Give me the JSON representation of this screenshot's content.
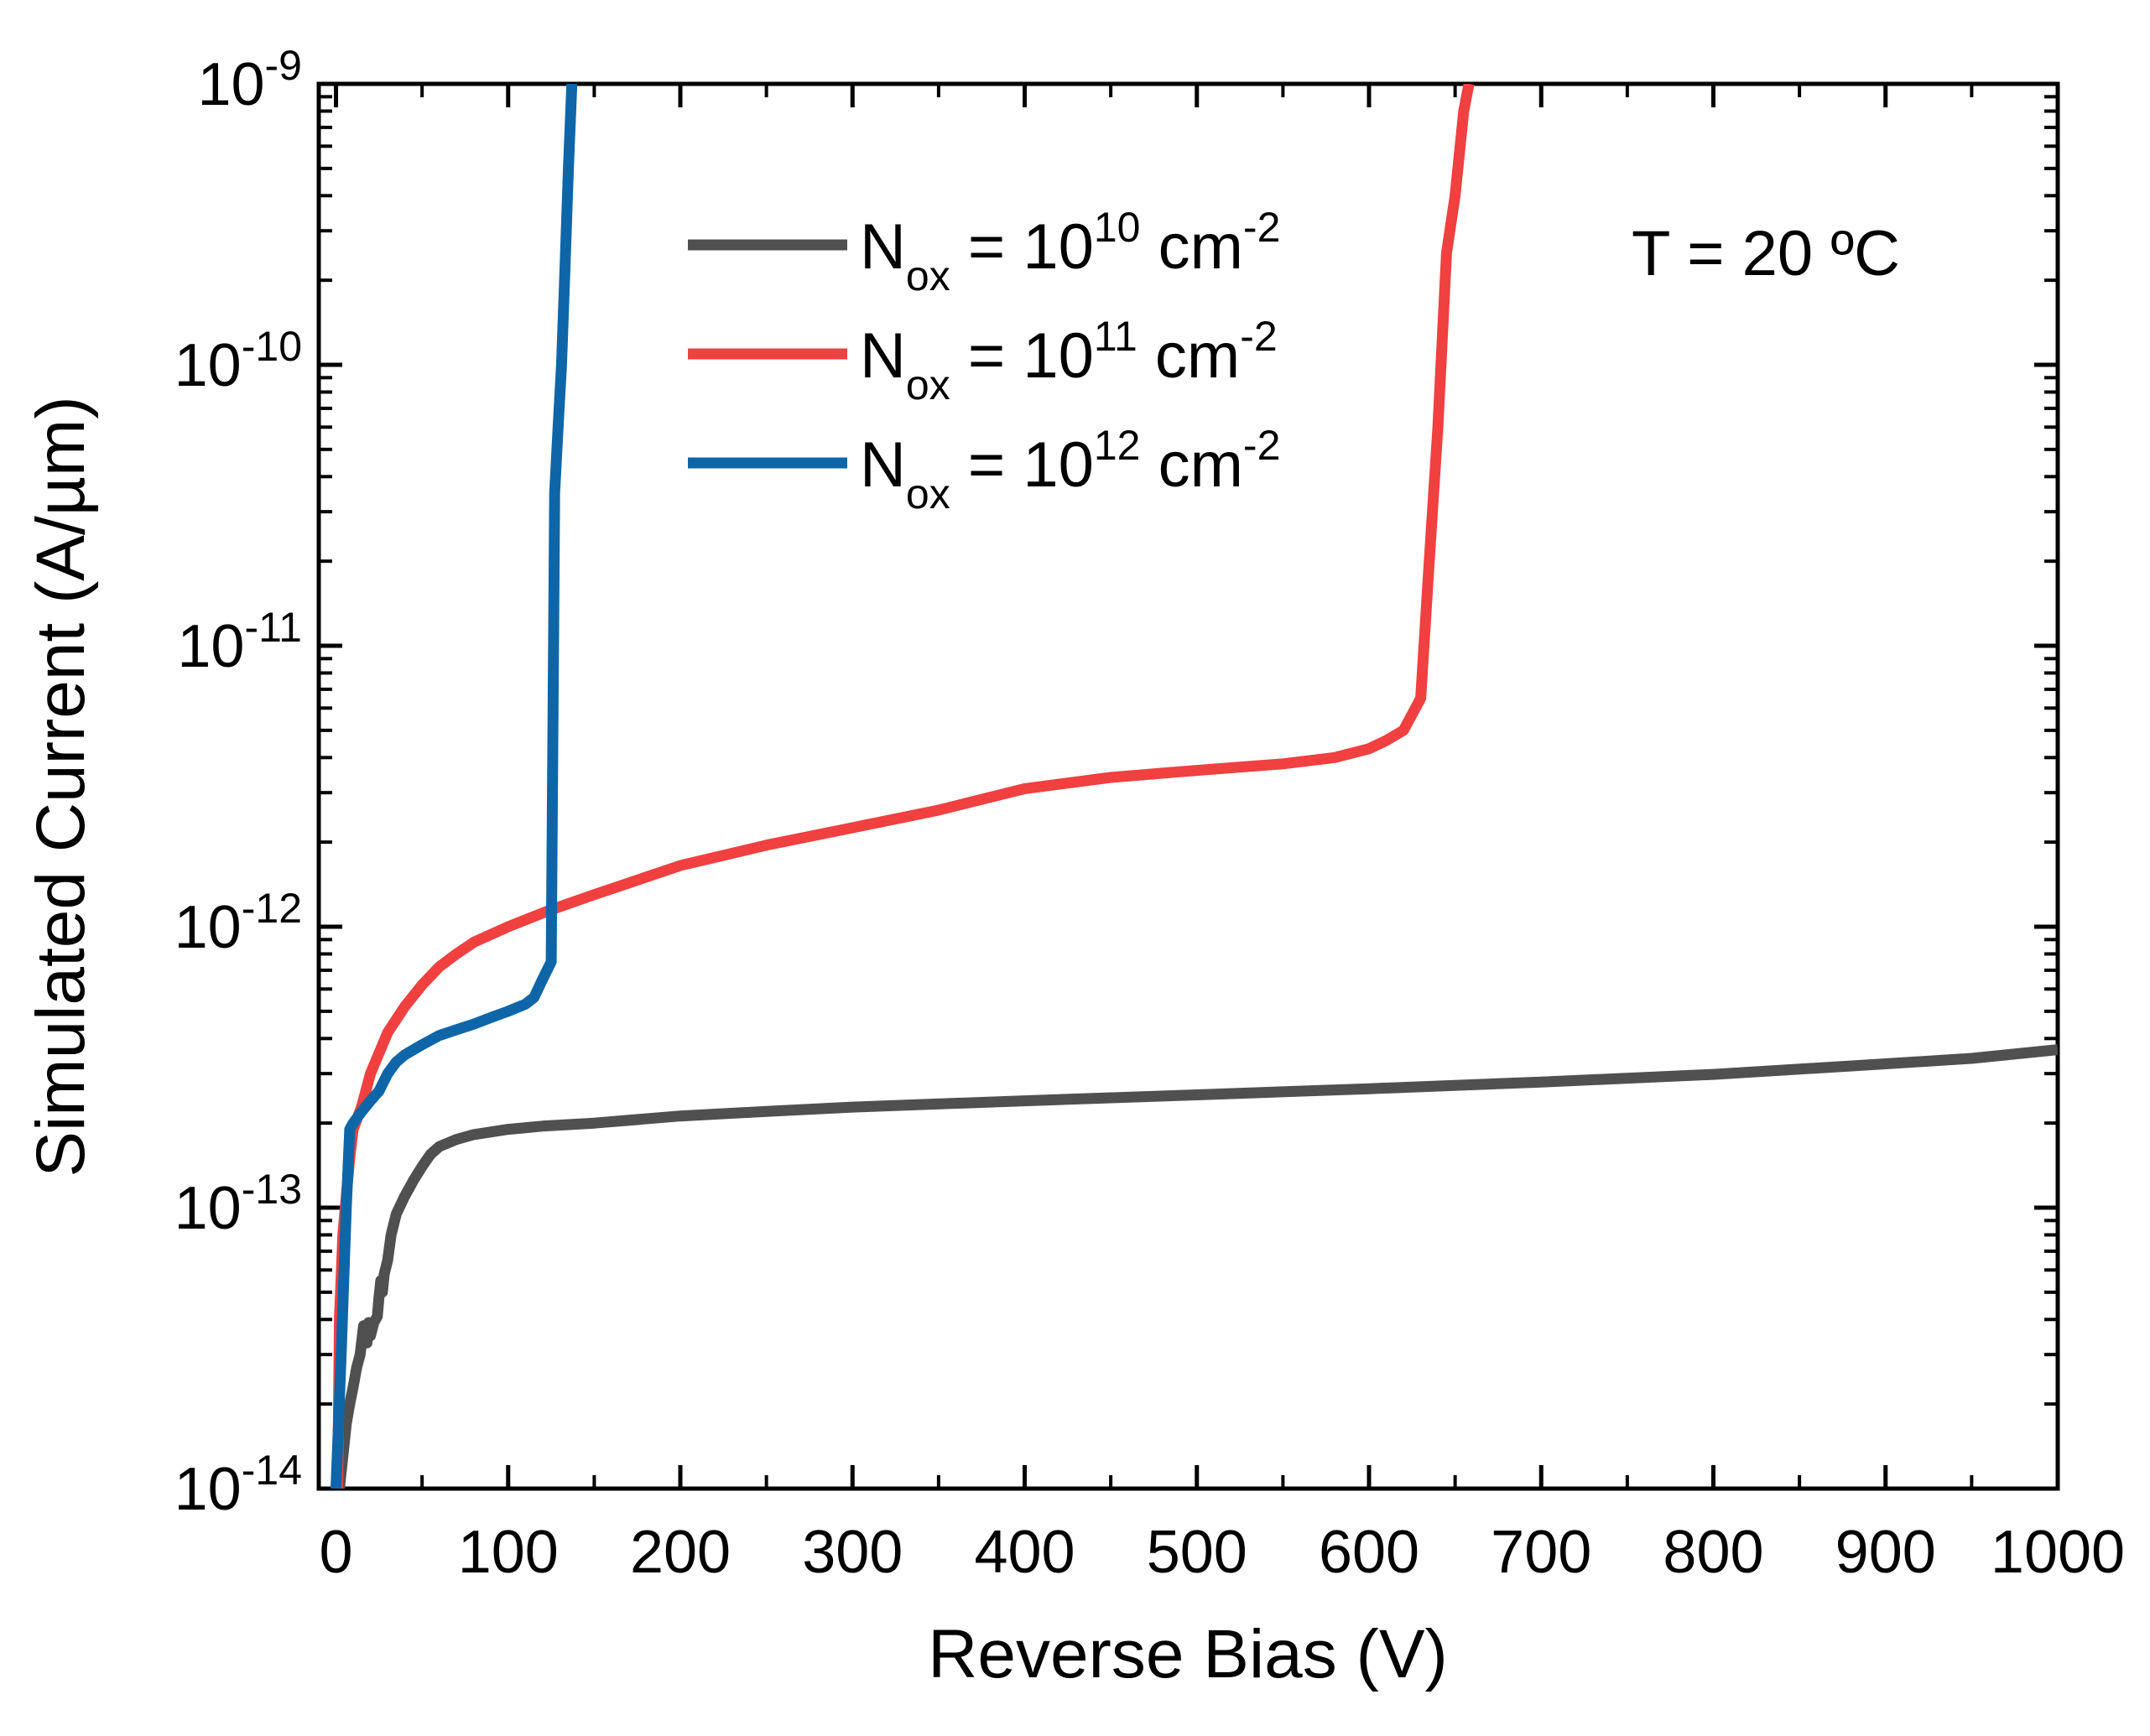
{
  "chart_data": {
    "type": "line",
    "title": "",
    "xlabel": "Reverse Bias (V)",
    "ylabel": "Simulated Current (A/µm)",
    "xscale": "linear",
    "yscale": "log",
    "xlim": [
      -10,
      1000
    ],
    "ylim": [
      1e-14,
      1e-09
    ],
    "x_ticks": [
      0,
      100,
      200,
      300,
      400,
      500,
      600,
      700,
      800,
      900,
      1000
    ],
    "x_tick_labels": [
      "0",
      "100",
      "200",
      "300",
      "400",
      "500",
      "600",
      "700",
      "800",
      "900",
      "1000"
    ],
    "y_ticks": [
      {
        "value": 1e-14,
        "base": "10",
        "exp": "-14"
      },
      {
        "value": 1e-13,
        "base": "10",
        "exp": "-13"
      },
      {
        "value": 1e-12,
        "base": "10",
        "exp": "-12"
      },
      {
        "value": 1e-11,
        "base": "10",
        "exp": "-11"
      },
      {
        "value": 1e-10,
        "base": "10",
        "exp": "-10"
      },
      {
        "value": 1e-09,
        "base": "10",
        "exp": "-9"
      }
    ],
    "annotation": "T = 20 ºC",
    "legend_position": "top-center",
    "series": [
      {
        "name": "Nox = 10^10 cm^-2",
        "label_main": "N",
        "label_sub": "ox",
        "label_mid": " = 10",
        "label_exp": "10",
        "label_unit": " cm",
        "label_unit_exp": "-2",
        "color": "#505050",
        "x": [
          2,
          4,
          6,
          8,
          10,
          12,
          14,
          16,
          18,
          19,
          20,
          22,
          24,
          25,
          26,
          27,
          28,
          30,
          32,
          35,
          40,
          45,
          50,
          55,
          60,
          70,
          80,
          100,
          120,
          150,
          200,
          250,
          300,
          400,
          500,
          600,
          700,
          800,
          900,
          950,
          1000
        ],
        "y": [
          1e-14,
          1.3e-14,
          1.7e-14,
          2e-14,
          2.3e-14,
          2.7e-14,
          3e-14,
          3.8e-14,
          3.3e-14,
          3.9e-14,
          3.5e-14,
          3.9e-14,
          4.1e-14,
          4.8e-14,
          5.5e-14,
          5e-14,
          5.8e-14,
          6.5e-14,
          8e-14,
          9.5e-14,
          1.1e-13,
          1.25e-13,
          1.4e-13,
          1.55e-13,
          1.65e-13,
          1.75e-13,
          1.82e-13,
          1.9e-13,
          1.95e-13,
          2e-13,
          2.12e-13,
          2.2e-13,
          2.28e-13,
          2.4e-13,
          2.52e-13,
          2.65e-13,
          2.8e-13,
          2.98e-13,
          3.25e-13,
          3.4e-13,
          3.65e-13
        ]
      },
      {
        "name": "Nox = 10^11 cm^-2",
        "label_main": "N",
        "label_sub": "ox",
        "label_mid": " = 10",
        "label_exp": "11",
        "label_unit": " cm",
        "label_unit_exp": "-2",
        "color": "#f04040",
        "x": [
          1,
          2,
          4,
          6,
          8,
          10,
          15,
          20,
          30,
          40,
          50,
          60,
          70,
          80,
          100,
          125,
          150,
          200,
          250,
          300,
          350,
          400,
          450,
          500,
          550,
          580,
          600,
          610,
          620,
          630,
          635,
          640,
          645,
          650,
          655,
          658
        ],
        "y": [
          1e-14,
          4e-14,
          8e-14,
          1.1e-13,
          1.5e-13,
          1.9e-13,
          2.3e-13,
          3e-13,
          4.2e-13,
          5.2e-13,
          6.2e-13,
          7.2e-13,
          8e-13,
          8.8e-13,
          1e-12,
          1.15e-12,
          1.3e-12,
          1.65e-12,
          1.95e-12,
          2.25e-12,
          2.6e-12,
          3.1e-12,
          3.4e-12,
          3.6e-12,
          3.8e-12,
          4e-12,
          4.3e-12,
          4.6e-12,
          5e-12,
          6.5e-12,
          2e-11,
          6e-11,
          2.5e-10,
          4e-10,
          8e-10,
          1e-09
        ]
      },
      {
        "name": "Nox = 10^12 cm^-2",
        "label_main": "N",
        "label_sub": "ox",
        "label_mid": " = 10",
        "label_exp": "12",
        "label_unit": " cm",
        "label_unit_exp": "-2",
        "color": "#0e66a8",
        "x": [
          0,
          3,
          6,
          8,
          10,
          15,
          20,
          25,
          30,
          35,
          40,
          50,
          60,
          70,
          80,
          90,
          100,
          110,
          115,
          120,
          125,
          127,
          129,
          131,
          133,
          135,
          137
        ],
        "y": [
          1e-14,
          3e-14,
          1e-13,
          1.9e-13,
          2e-13,
          2.2e-13,
          2.4e-13,
          2.6e-13,
          3e-13,
          3.3e-13,
          3.5e-13,
          3.8e-13,
          4.1e-13,
          4.3e-13,
          4.5e-13,
          4.75e-13,
          5e-13,
          5.3e-13,
          5.6e-13,
          6.5e-13,
          7.5e-13,
          3.5e-11,
          6e-11,
          1e-10,
          2.2e-10,
          5e-10,
          1e-09
        ]
      }
    ]
  }
}
